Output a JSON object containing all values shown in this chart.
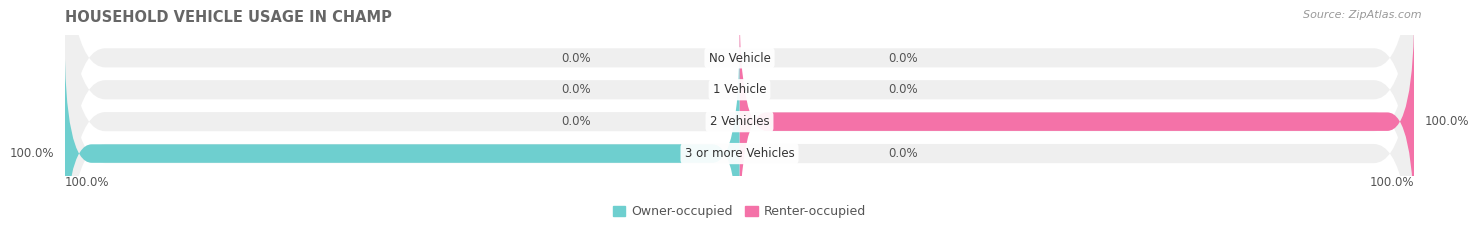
{
  "title": "HOUSEHOLD VEHICLE USAGE IN CHAMP",
  "source": "Source: ZipAtlas.com",
  "categories": [
    "No Vehicle",
    "1 Vehicle",
    "2 Vehicles",
    "3 or more Vehicles"
  ],
  "owner_values": [
    0.0,
    0.0,
    0.0,
    100.0
  ],
  "renter_values": [
    0.0,
    0.0,
    100.0,
    0.0
  ],
  "owner_color": "#6ecfcf",
  "renter_color": "#f472a8",
  "bar_bg_color": "#efefef",
  "bar_bg_shadow": "#e2e2e2",
  "x_left_label": "100.0%",
  "x_right_label": "100.0%",
  "title_fontsize": 10.5,
  "label_fontsize": 8.5,
  "legend_fontsize": 9,
  "source_fontsize": 8,
  "fig_width": 14.06,
  "fig_height": 2.34
}
